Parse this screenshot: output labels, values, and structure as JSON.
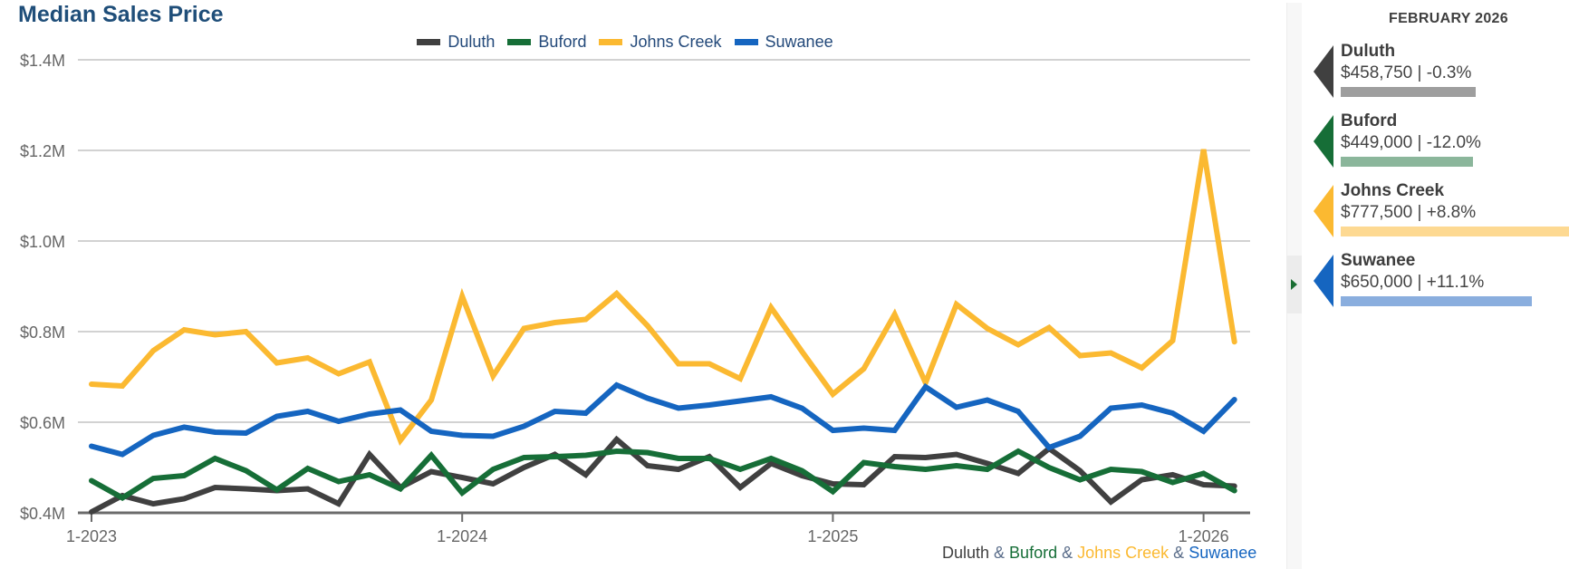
{
  "header": {
    "title": "Median Sales Price"
  },
  "legend": [
    {
      "label": "Duluth",
      "color": "#404040"
    },
    {
      "label": "Buford",
      "color": "#166e37"
    },
    {
      "label": "Johns Creek",
      "color": "#fbb931"
    },
    {
      "label": "Suwanee",
      "color": "#1565c0"
    }
  ],
  "caption": {
    "parts": [
      {
        "text": "Duluth",
        "color": "#404040"
      },
      {
        "text": " & ",
        "color": "#5a6d8a"
      },
      {
        "text": "Buford",
        "color": "#166e37"
      },
      {
        "text": " & ",
        "color": "#5a6d8a"
      },
      {
        "text": "Johns Creek",
        "color": "#fbb931"
      },
      {
        "text": " & ",
        "color": "#5a6d8a"
      },
      {
        "text": "Suwanee",
        "color": "#1565c0"
      }
    ]
  },
  "panel": {
    "title": "FEBRUARY 2026",
    "cards": [
      {
        "name": "Duluth",
        "stat": "$458,750 | -0.3%",
        "color": "#404040",
        "bar_color": "#9e9e9e",
        "relative_value": 0.59
      },
      {
        "name": "Buford",
        "stat": "$449,000 | -12.0%",
        "color": "#166e37",
        "bar_color": "#8bb69b",
        "relative_value": 0.578
      },
      {
        "name": "Johns Creek",
        "stat": "$777,500 | +8.8%",
        "color": "#fbb931",
        "bar_color": "#fdd992",
        "relative_value": 1.0
      },
      {
        "name": "Suwanee",
        "stat": "$650,000 | +11.1%",
        "color": "#1565c0",
        "bar_color": "#8aaede",
        "relative_value": 0.836
      }
    ]
  },
  "chart_data": {
    "type": "line",
    "title": "Median Sales Price",
    "xlabel": "",
    "ylabel": "",
    "ylim": [
      0.4,
      1.4
    ],
    "y_unit": "millions USD",
    "y_ticks": [
      {
        "value": 0.4,
        "label": "$0.4M"
      },
      {
        "value": 0.6,
        "label": "$0.6M"
      },
      {
        "value": 0.8,
        "label": "$0.8M"
      },
      {
        "value": 1.0,
        "label": "$1.0M"
      },
      {
        "value": 1.2,
        "label": "$1.2M"
      },
      {
        "value": 1.4,
        "label": "$1.4M"
      }
    ],
    "x_ticks": [
      {
        "index": 0,
        "label": "1-2023"
      },
      {
        "index": 12,
        "label": "1-2024"
      },
      {
        "index": 24,
        "label": "1-2025"
      },
      {
        "index": 36,
        "label": "1-2026"
      }
    ],
    "x_start": "1-2023",
    "x_end": "2-2026",
    "months": 38,
    "grid": true,
    "legend_position": "top-center",
    "series": [
      {
        "name": "Duluth",
        "color": "#404040",
        "values": [
          0.402,
          0.438,
          0.42,
          0.431,
          0.456,
          0.453,
          0.449,
          0.453,
          0.42,
          0.529,
          0.456,
          0.491,
          0.478,
          0.464,
          0.5,
          0.529,
          0.484,
          0.562,
          0.504,
          0.496,
          0.524,
          0.456,
          0.509,
          0.482,
          0.464,
          0.462,
          0.524,
          0.522,
          0.529,
          0.509,
          0.487,
          0.542,
          0.493,
          0.424,
          0.473,
          0.484,
          0.462,
          0.459
        ]
      },
      {
        "name": "Buford",
        "color": "#166e37",
        "values": [
          0.471,
          0.433,
          0.476,
          0.482,
          0.52,
          0.493,
          0.451,
          0.498,
          0.469,
          0.484,
          0.453,
          0.527,
          0.444,
          0.496,
          0.522,
          0.524,
          0.527,
          0.536,
          0.533,
          0.52,
          0.52,
          0.496,
          0.52,
          0.493,
          0.447,
          0.511,
          0.502,
          0.496,
          0.504,
          0.496,
          0.536,
          0.5,
          0.473,
          0.496,
          0.491,
          0.467,
          0.487,
          0.449
        ]
      },
      {
        "name": "Johns Creek",
        "color": "#fbb931",
        "values": [
          0.684,
          0.68,
          0.758,
          0.804,
          0.793,
          0.8,
          0.731,
          0.742,
          0.707,
          0.733,
          0.56,
          0.649,
          0.878,
          0.702,
          0.807,
          0.82,
          0.827,
          0.884,
          0.813,
          0.729,
          0.729,
          0.696,
          0.853,
          0.756,
          0.662,
          0.718,
          0.838,
          0.687,
          0.86,
          0.807,
          0.771,
          0.809,
          0.747,
          0.753,
          0.72,
          0.78,
          1.202,
          0.7775
        ]
      },
      {
        "name": "Suwanee",
        "color": "#1565c0",
        "values": [
          0.547,
          0.529,
          0.571,
          0.589,
          0.578,
          0.576,
          0.613,
          0.624,
          0.602,
          0.618,
          0.627,
          0.58,
          0.571,
          0.569,
          0.591,
          0.624,
          0.62,
          0.682,
          0.653,
          0.631,
          0.638,
          0.647,
          0.656,
          0.631,
          0.582,
          0.587,
          0.582,
          0.678,
          0.633,
          0.649,
          0.624,
          0.544,
          0.569,
          0.631,
          0.638,
          0.62,
          0.58,
          0.65
        ]
      }
    ]
  }
}
